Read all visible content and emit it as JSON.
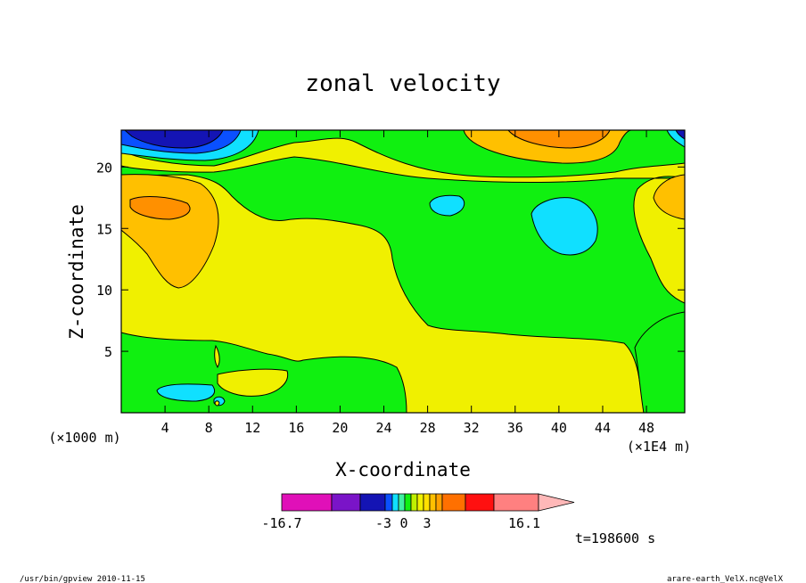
{
  "chart_data": {
    "type": "contour",
    "title": "zonal velocity",
    "xlabel": "X-coordinate",
    "ylabel": "Z-coordinate",
    "x_units": "(×1E4 m)",
    "y_units": "(×1000 m)",
    "xlim": [
      0,
      51.5
    ],
    "ylim": [
      0,
      23
    ],
    "x_ticks": [
      "4",
      "8",
      "12",
      "16",
      "20",
      "24",
      "28",
      "32",
      "36",
      "40",
      "44",
      "48"
    ],
    "y_ticks": [
      "5",
      "10",
      "15",
      "20"
    ],
    "colorbar": {
      "labels": [
        "-16.7",
        "-3",
        "0",
        "3",
        "16.1"
      ],
      "colors": [
        "#e010b8",
        "#7a14c8",
        "#1414b4",
        "#0a50ff",
        "#10e0ff",
        "#40f0a0",
        "#10f010",
        "#c0f000",
        "#f0f000",
        "#ffe000",
        "#ffc000",
        "#ffa000",
        "#ff7000",
        "#ff1010",
        "#ff8080",
        "#ffb8b8"
      ]
    },
    "annotation": "t=198600 s"
  },
  "footer": {
    "left": "/usr/bin/gpview   2010-11-15",
    "right": "arare-earth_VelX.nc@VelX"
  }
}
